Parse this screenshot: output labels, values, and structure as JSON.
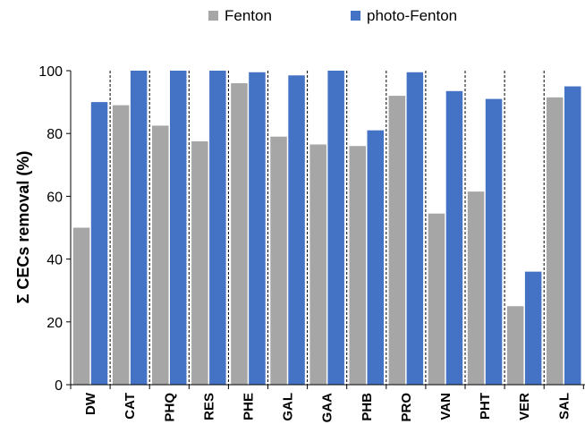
{
  "chart_data": {
    "type": "bar",
    "ylabel": "Σ CECs removal (%)",
    "xlabel": "",
    "ylim": [
      0,
      100
    ],
    "yticks": [
      0,
      20,
      40,
      60,
      80,
      100
    ],
    "grid": false,
    "legend_position": "top-center",
    "categories": [
      "DW",
      "CAT",
      "PHQ",
      "RES",
      "PHE",
      "GAL",
      "GAA",
      "PHB",
      "PRO",
      "VAN",
      "PHT",
      "VER",
      "SAL"
    ],
    "series": [
      {
        "name": "Fenton",
        "color": "#a6a6a6",
        "values": [
          50,
          89,
          82.5,
          77.5,
          96,
          79,
          76.5,
          76,
          92,
          54.5,
          61.5,
          25,
          91.5
        ]
      },
      {
        "name": "photo-Fenton",
        "color": "#4472c4",
        "values": [
          90,
          100,
          100,
          100,
          99.5,
          98.5,
          100,
          81,
          99.5,
          93.5,
          91,
          36,
          95
        ]
      }
    ]
  }
}
